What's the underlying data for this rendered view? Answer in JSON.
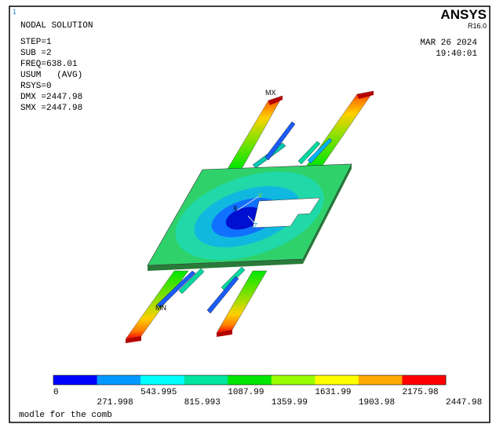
{
  "header": {
    "marker": "1",
    "title": "NODAL SOLUTION",
    "info": [
      "STEP=1",
      "SUB =2",
      "FREQ=638.01",
      "USUM   (AVG)",
      "RSYS=0",
      "DMX =2447.98",
      "SMX =2447.98"
    ],
    "logo": "ANSYS",
    "version": "R16.0",
    "date": "MAR 26 2024",
    "time": "19:40:01"
  },
  "model": {
    "max_label": "MX",
    "min_label": "MN",
    "axes": [
      "X",
      "Y",
      "Z"
    ]
  },
  "legend": {
    "colors": [
      "#0000ff",
      "#0099ff",
      "#00ffff",
      "#00e6a0",
      "#00e600",
      "#99ff00",
      "#ffff00",
      "#ffaa00",
      "#ff0000"
    ],
    "labels": [
      "0",
      "271.998",
      "543.995",
      "815.993",
      "1087.99",
      "1359.99",
      "1631.99",
      "1903.98",
      "2175.98",
      "2447.98"
    ]
  },
  "footer": "modle for the comb"
}
